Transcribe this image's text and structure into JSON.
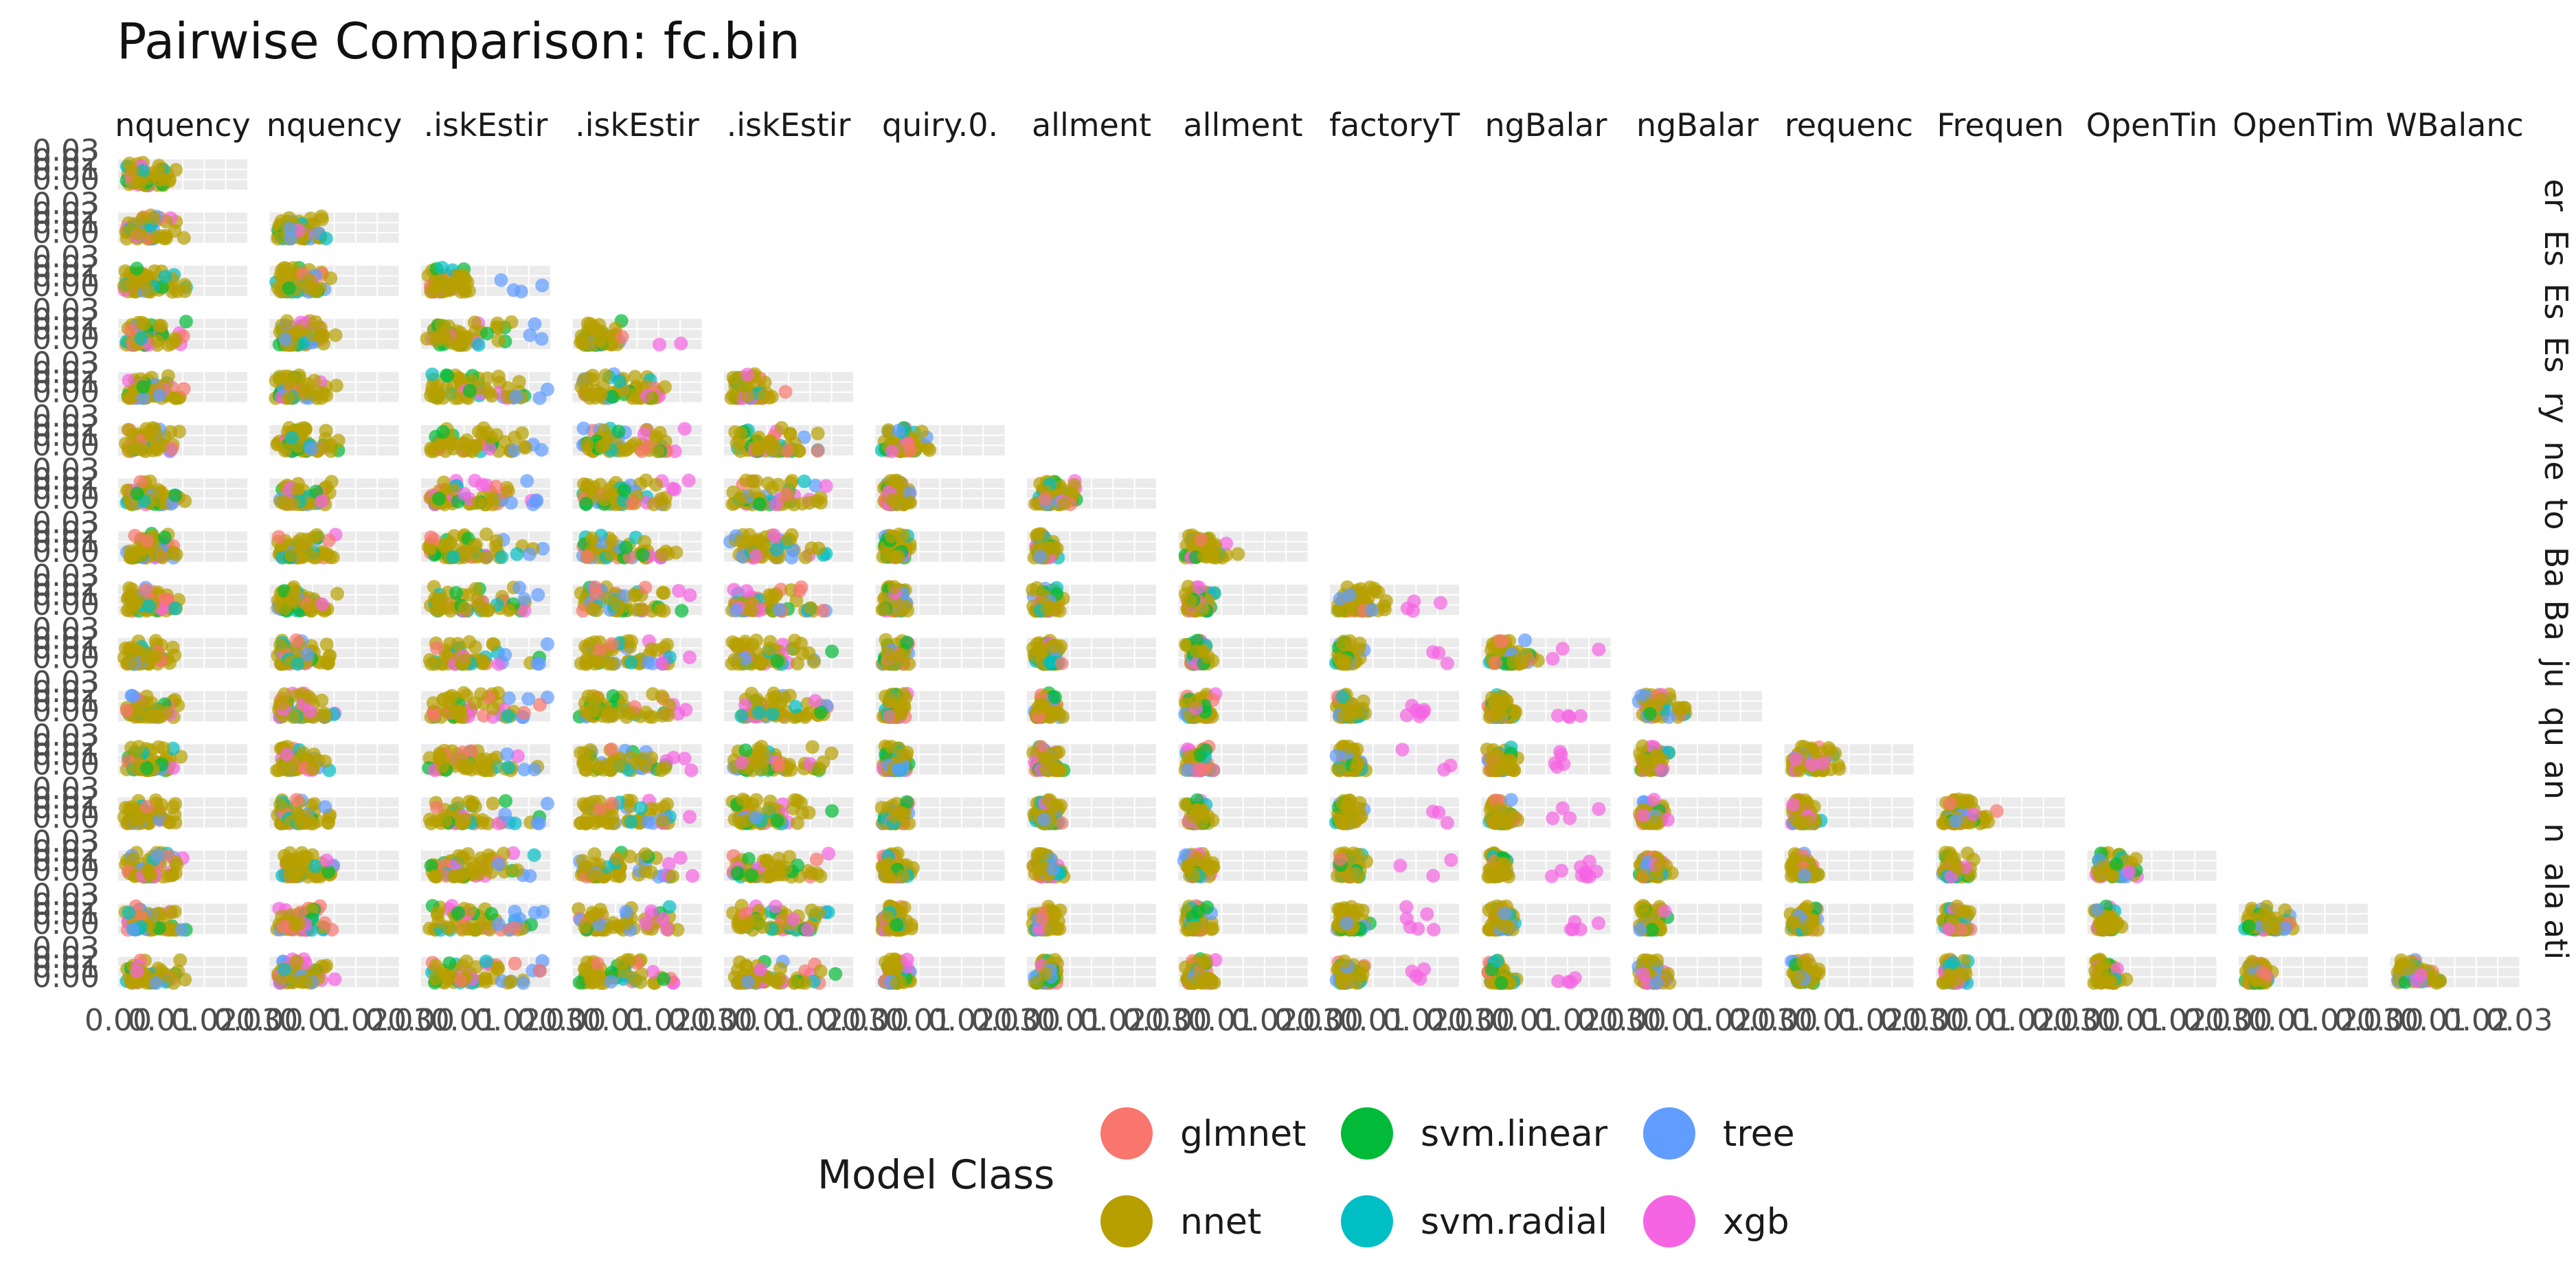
{
  "chart_data": {
    "type": "scatter",
    "title": "Pairwise Comparison: fc.bin",
    "column_labels": [
      "nquency",
      "nquency",
      ".iskEstir",
      ".iskEstir",
      ".iskEstir",
      "quiry.0.",
      "allment",
      "allment",
      "factoryT",
      "ngBalar",
      "ngBalar",
      "requenc",
      "Frequen",
      "OpenTin",
      "OpenTim",
      "WBalanc"
    ],
    "row_labels": [
      "er",
      "Es",
      "Es",
      "Es",
      "ry",
      "ne",
      "to",
      "Ba",
      "Ba",
      "ju",
      "qu",
      "an",
      "n",
      "ala",
      "ati"
    ],
    "y_ticks": [
      "0.03",
      "0.02",
      "0.01",
      "0.00"
    ],
    "x_ticks": [
      "0.00",
      "0.01",
      "0.02",
      "0.03"
    ],
    "xlim": [
      0,
      0.03
    ],
    "ylim": [
      0,
      0.03
    ],
    "grid": true,
    "facet_layout": "lower-triangle",
    "dominant_series": "nnet",
    "legend": {
      "title": "Model Class",
      "position": "bottom",
      "items": [
        {
          "name": "glmnet",
          "color": "#F8766D"
        },
        {
          "name": "svm.linear",
          "color": "#00BA38"
        },
        {
          "name": "tree",
          "color": "#619CFF"
        },
        {
          "name": "nnet",
          "color": "#B79F00"
        },
        {
          "name": "svm.radial",
          "color": "#00BFC4"
        },
        {
          "name": "xgb",
          "color": "#F564E3"
        }
      ]
    }
  }
}
